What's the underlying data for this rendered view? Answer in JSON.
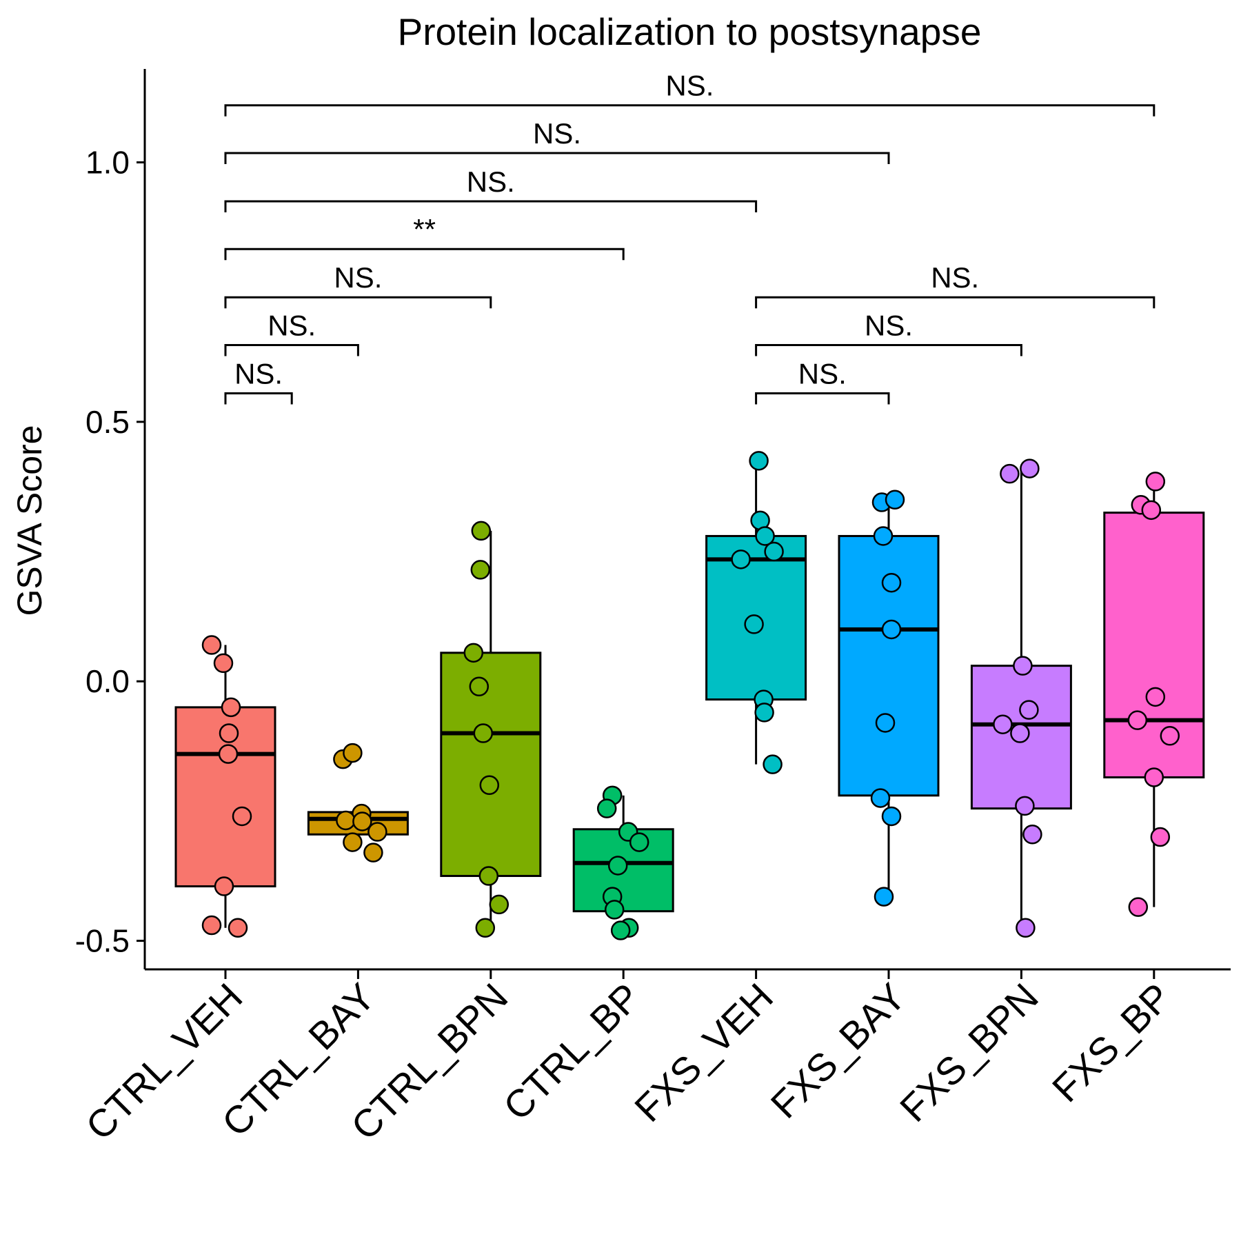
{
  "chart_data": {
    "type": "boxplot",
    "title": "Protein localization to postsynapse",
    "ylabel": "GSVA Score",
    "xlabel": "",
    "ylim": [
      -0.555,
      1.18
    ],
    "y_ticks": [
      -0.5,
      0.0,
      0.5,
      1.0
    ],
    "y_tick_labels": [
      "-0.5",
      "0.0",
      "0.5",
      "1.0"
    ],
    "grid": false,
    "legend": "none",
    "categories": [
      "CTRL_VEH",
      "CTRL_BAY",
      "CTRL_BPN",
      "CTRL_BP",
      "FXS_VEH",
      "FXS_BAY",
      "FXS_BPN",
      "FXS_BP"
    ],
    "colors": [
      "#F8766D",
      "#CD9600",
      "#7CAE00",
      "#00BE67",
      "#00BFC4",
      "#00A9FF",
      "#C77CFF",
      "#FF61CC"
    ],
    "boxes": [
      {
        "q1": -0.395,
        "median": -0.14,
        "q3": -0.05,
        "whisker_low": -0.475,
        "whisker_high": 0.07
      },
      {
        "q1": -0.295,
        "median": -0.265,
        "q3": -0.252,
        "whisker_low": -0.295,
        "whisker_high": -0.252
      },
      {
        "q1": -0.375,
        "median": -0.1,
        "q3": 0.055,
        "whisker_low": -0.475,
        "whisker_high": 0.29
      },
      {
        "q1": -0.443,
        "median": -0.35,
        "q3": -0.285,
        "whisker_low": -0.443,
        "whisker_high": -0.22
      },
      {
        "q1": -0.035,
        "median": 0.235,
        "q3": 0.28,
        "whisker_low": -0.16,
        "whisker_high": 0.425
      },
      {
        "q1": -0.22,
        "median": 0.1,
        "q3": 0.28,
        "whisker_low": -0.415,
        "whisker_high": 0.35
      },
      {
        "q1": -0.245,
        "median": -0.083,
        "q3": 0.03,
        "whisker_low": -0.475,
        "whisker_high": 0.41
      },
      {
        "q1": -0.185,
        "median": -0.075,
        "q3": 0.325,
        "whisker_low": -0.435,
        "whisker_high": 0.385
      }
    ],
    "points": [
      [
        [
          0.07,
          -0.2
        ],
        [
          0.035,
          -0.03
        ],
        [
          -0.05,
          0.08
        ],
        [
          -0.1,
          0.05
        ],
        [
          -0.14,
          0.04
        ],
        [
          -0.26,
          0.24
        ],
        [
          -0.395,
          -0.02
        ],
        [
          -0.47,
          -0.2
        ],
        [
          -0.475,
          0.18
        ]
      ],
      [
        [
          -0.15,
          -0.22
        ],
        [
          -0.138,
          -0.08
        ],
        [
          -0.255,
          0.05
        ],
        [
          -0.268,
          -0.18
        ],
        [
          -0.27,
          0.06
        ],
        [
          -0.29,
          0.28
        ],
        [
          -0.31,
          -0.08
        ],
        [
          -0.33,
          0.22
        ]
      ],
      [
        [
          0.29,
          -0.14
        ],
        [
          0.215,
          -0.15
        ],
        [
          0.055,
          -0.25
        ],
        [
          -0.01,
          -0.17
        ],
        [
          -0.1,
          -0.11
        ],
        [
          -0.2,
          -0.02
        ],
        [
          -0.375,
          -0.03
        ],
        [
          -0.43,
          0.12
        ],
        [
          -0.475,
          -0.08
        ]
      ],
      [
        [
          -0.22,
          -0.16
        ],
        [
          -0.245,
          -0.24
        ],
        [
          -0.29,
          0.07
        ],
        [
          -0.31,
          0.23
        ],
        [
          -0.355,
          -0.08
        ],
        [
          -0.415,
          -0.16
        ],
        [
          -0.44,
          -0.13
        ],
        [
          -0.475,
          0.08
        ],
        [
          -0.48,
          -0.04
        ]
      ],
      [
        [
          0.425,
          0.04
        ],
        [
          0.31,
          0.06
        ],
        [
          0.28,
          0.13
        ],
        [
          0.25,
          0.26
        ],
        [
          0.235,
          -0.22
        ],
        [
          0.11,
          -0.03
        ],
        [
          -0.035,
          0.11
        ],
        [
          -0.06,
          0.12
        ],
        [
          -0.16,
          0.24
        ]
      ],
      [
        [
          0.345,
          -0.1
        ],
        [
          0.35,
          0.09
        ],
        [
          0.28,
          -0.08
        ],
        [
          0.19,
          0.04
        ],
        [
          0.1,
          0.04
        ],
        [
          -0.08,
          -0.05
        ],
        [
          -0.225,
          -0.12
        ],
        [
          -0.26,
          0.04
        ],
        [
          -0.415,
          -0.07
        ]
      ],
      [
        [
          0.4,
          -0.17
        ],
        [
          0.41,
          0.12
        ],
        [
          0.03,
          0.02
        ],
        [
          -0.055,
          0.11
        ],
        [
          -0.083,
          -0.27
        ],
        [
          -0.1,
          -0.02
        ],
        [
          -0.24,
          0.05
        ],
        [
          -0.295,
          0.16
        ],
        [
          -0.475,
          0.06
        ]
      ],
      [
        [
          0.385,
          0.02
        ],
        [
          0.34,
          -0.19
        ],
        [
          0.33,
          -0.04
        ],
        [
          -0.03,
          0.02
        ],
        [
          -0.075,
          -0.24
        ],
        [
          -0.105,
          0.23
        ],
        [
          -0.185,
          0.0
        ],
        [
          -0.3,
          0.09
        ],
        [
          -0.435,
          -0.23
        ]
      ]
    ],
    "comparisons": [
      {
        "from": 0,
        "to": 7,
        "y": 1.11,
        "label": "NS."
      },
      {
        "from": 0,
        "to": 5,
        "y": 1.018,
        "label": "NS."
      },
      {
        "from": 0,
        "to": 4,
        "y": 0.925,
        "label": "NS."
      },
      {
        "from": 0,
        "to": 3,
        "y": 0.833,
        "label": "**"
      },
      {
        "from": 0,
        "to": 2,
        "y": 0.74,
        "label": "NS."
      },
      {
        "from": 0,
        "to": 1,
        "y": 0.648,
        "label": "NS."
      },
      {
        "from": 0,
        "to": 0.5,
        "y": 0.555,
        "label": "NS."
      },
      {
        "from": 4,
        "to": 7,
        "y": 0.74,
        "label": "NS."
      },
      {
        "from": 4,
        "to": 6,
        "y": 0.648,
        "label": "NS."
      },
      {
        "from": 4,
        "to": 5,
        "y": 0.555,
        "label": "NS."
      }
    ]
  }
}
